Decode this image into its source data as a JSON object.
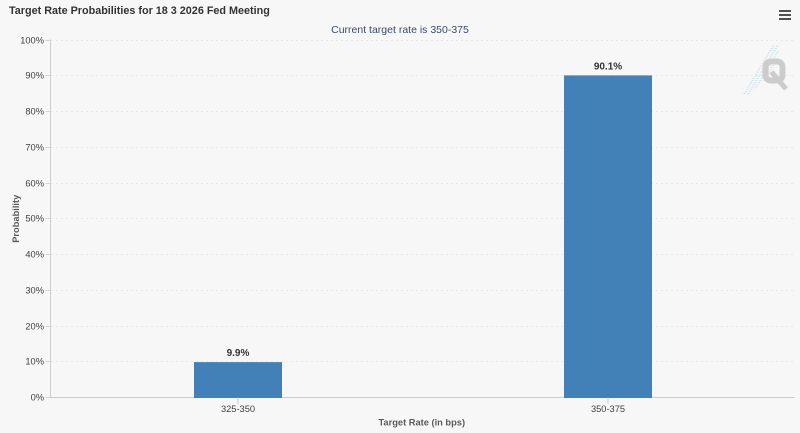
{
  "chart": {
    "title": "Target Rate Probabilities for 18 3 2026 Fed Meeting",
    "subtitle": "Current target rate is 350-375",
    "export_menu_icon": "hamburger-icon",
    "watermark_letter": "Q"
  },
  "chart_data": {
    "type": "bar",
    "title": "Target Rate Probabilities for 18 3 2026 Fed Meeting",
    "subtitle": "Current target rate is 350-375",
    "categories": [
      "325-350",
      "350-375"
    ],
    "values": [
      9.9,
      90.1
    ],
    "data_labels": [
      "9.9%",
      "90.1%"
    ],
    "xlabel": "Target Rate (in bps)",
    "ylabel": "Probability",
    "ylim": [
      0,
      100
    ],
    "ytick_step": 10,
    "ytick_labels": [
      "0%",
      "10%",
      "20%",
      "30%",
      "40%",
      "50%",
      "60%",
      "70%",
      "80%",
      "90%",
      "100%"
    ],
    "legend": "none",
    "grid": "horizontal-dotted"
  },
  "colors": {
    "background": "#f7f7f7",
    "bar": "#4280b8",
    "title": "#333333",
    "subtitle": "#3b4a6b",
    "axis_line": "#cccccc",
    "gridline": "#d8d8d8",
    "tick_label": "#404040",
    "axis_title": "#5a5a5a",
    "data_label": "#333333",
    "watermark_q": "#cccccc",
    "watermark_hatch": "#b0d6ea",
    "menu_icon": "#505050"
  }
}
